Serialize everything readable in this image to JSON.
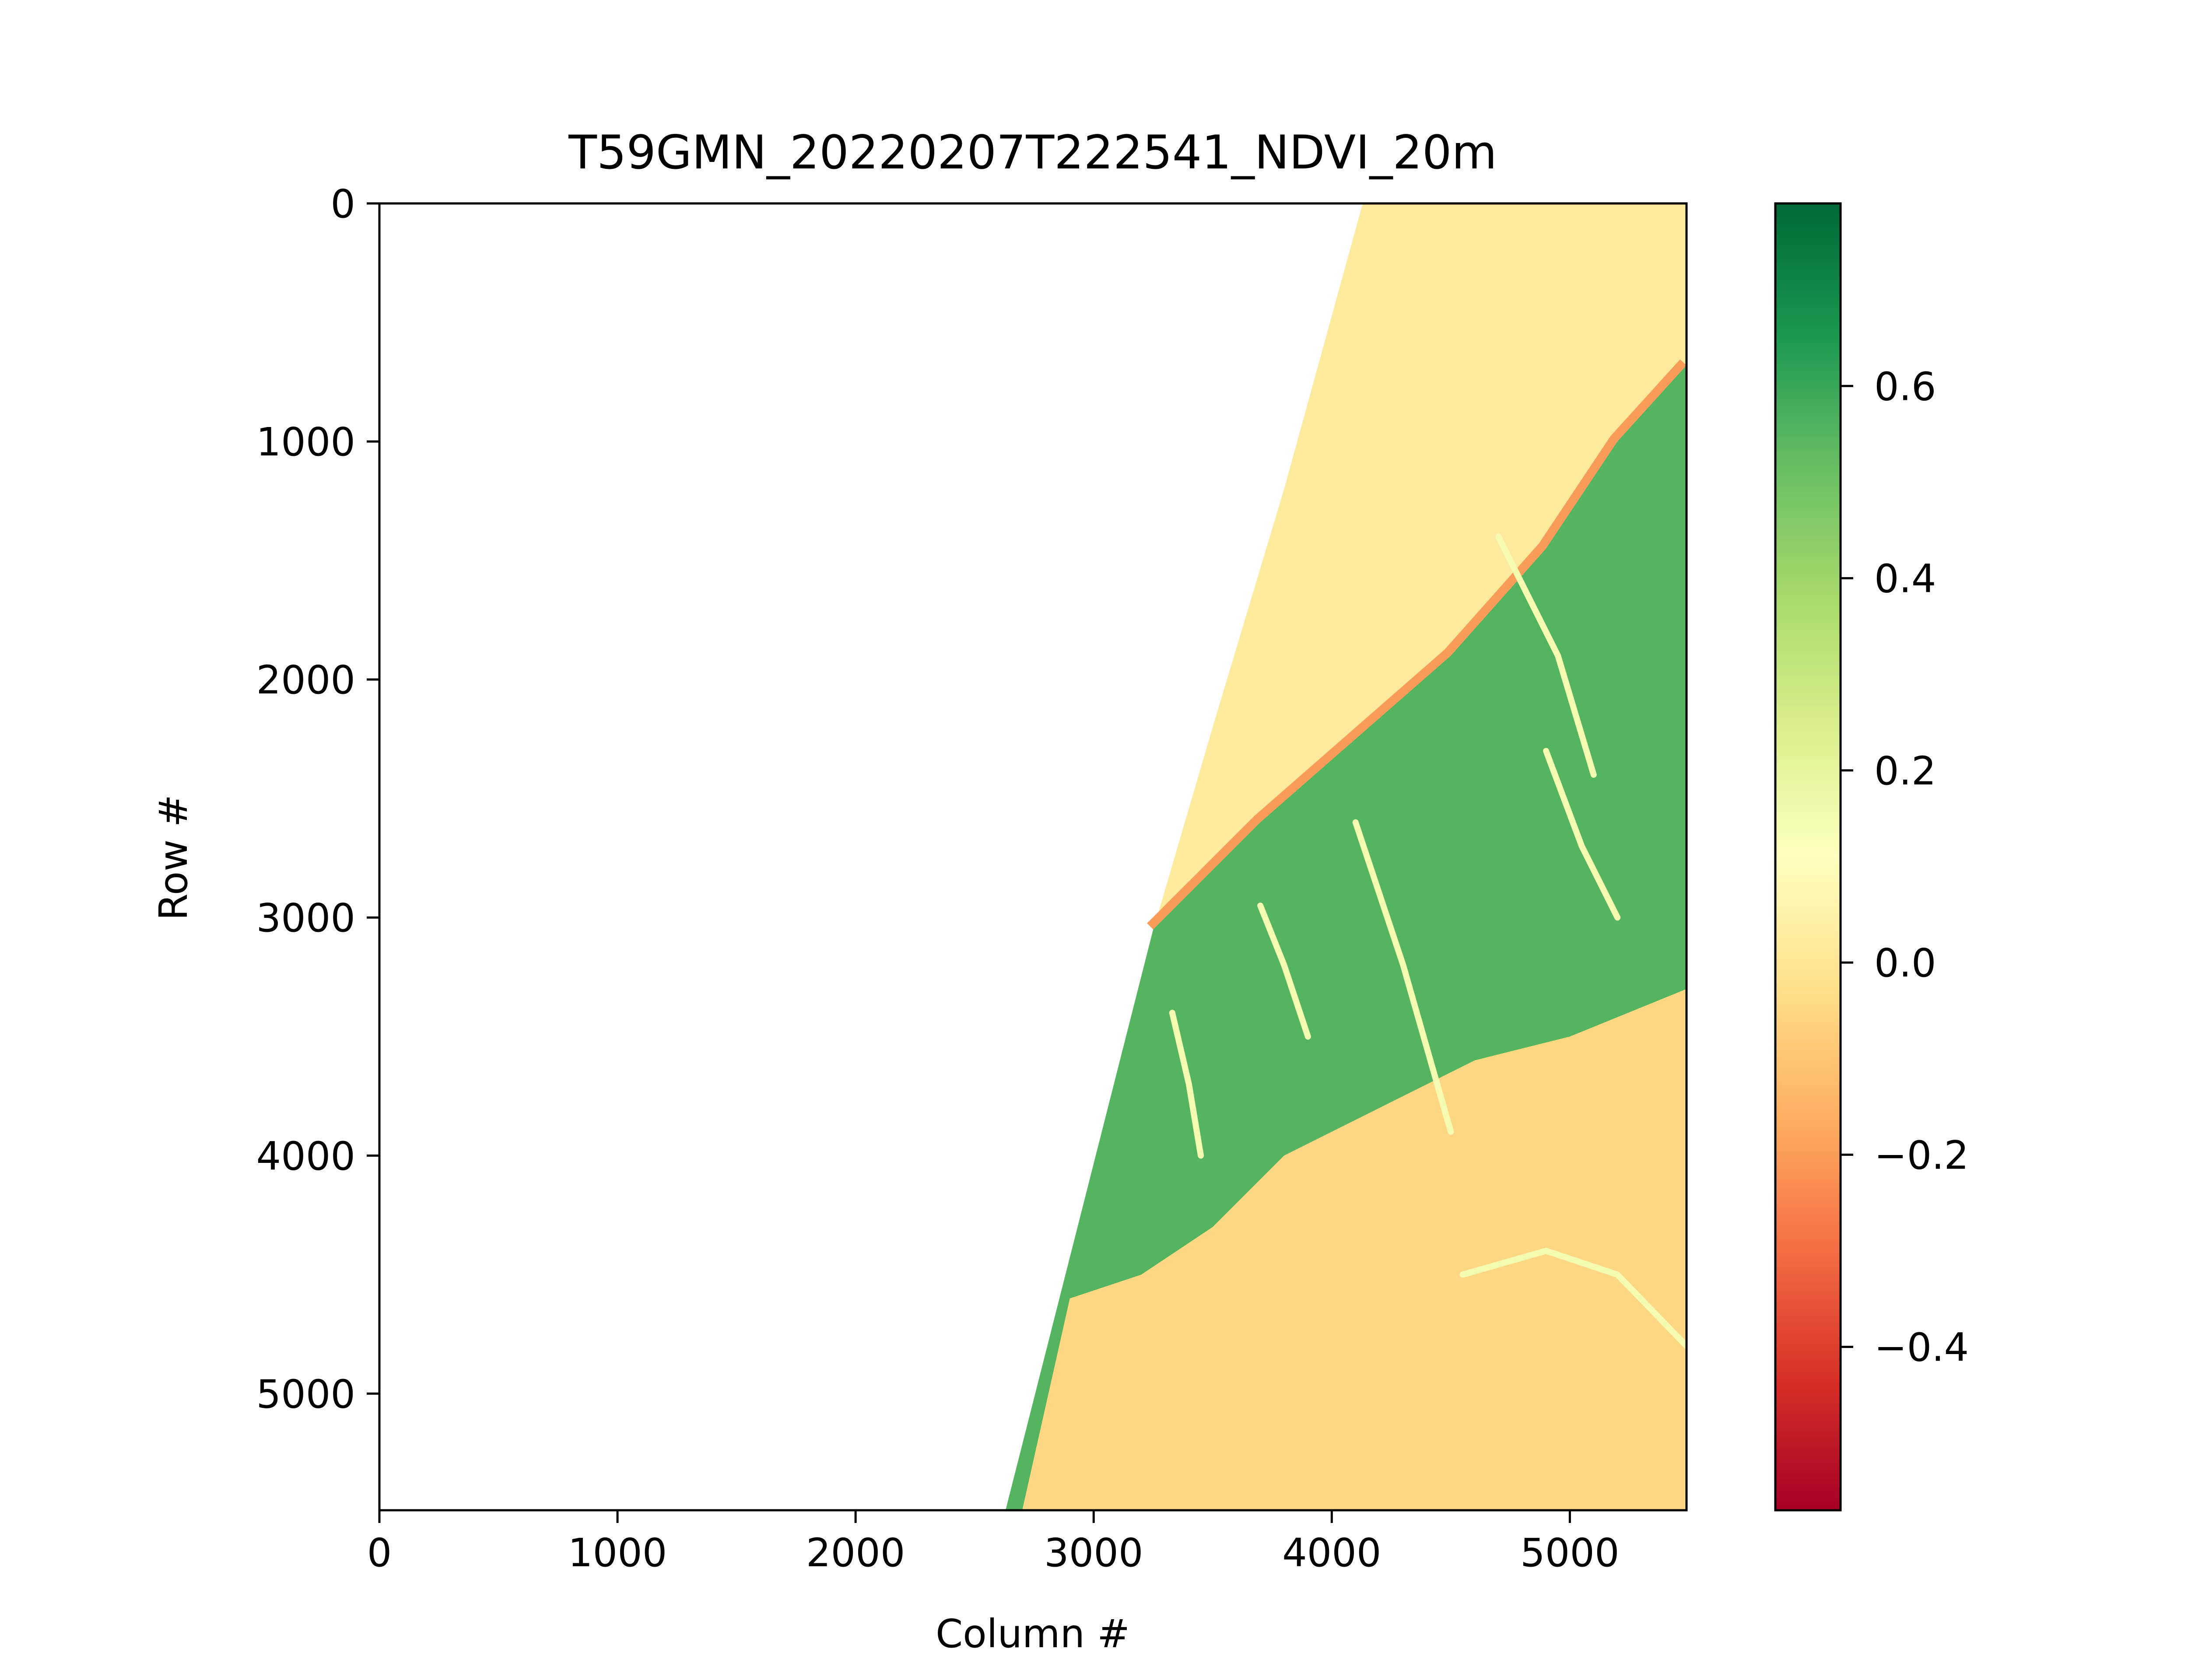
{
  "chart_data": {
    "type": "heatmap",
    "title": "T59GMN_20220207T222541_NDVI_20m",
    "xlabel": "Column #",
    "ylabel": "Row #",
    "xlim": [
      0,
      5490
    ],
    "ylim": [
      5490,
      0
    ],
    "xticks": [
      0,
      1000,
      2000,
      3000,
      4000,
      5000
    ],
    "xtick_labels": [
      "0",
      "1000",
      "2000",
      "3000",
      "4000",
      "5000"
    ],
    "yticks": [
      0,
      1000,
      2000,
      3000,
      4000,
      5000
    ],
    "ytick_labels": [
      "0",
      "1000",
      "2000",
      "3000",
      "4000",
      "5000"
    ],
    "colormap": "RdYlGn",
    "colorbar": {
      "vmin": -0.57,
      "vmax": 0.79,
      "ticks": [
        -0.4,
        -0.2,
        0.0,
        0.2,
        0.4,
        0.6
      ],
      "tick_labels": [
        "−0.4",
        "−0.2",
        "0.0",
        "0.2",
        "0.4",
        "0.6"
      ]
    },
    "regions": [
      {
        "name": "no-data",
        "value": null,
        "polygon": [
          [
            0,
            0
          ],
          [
            4130,
            0
          ],
          [
            2630,
            5490
          ],
          [
            0,
            5490
          ]
        ]
      },
      {
        "name": "sea",
        "value": 0.02,
        "polygon": [
          [
            4130,
            0
          ],
          [
            5490,
            0
          ],
          [
            5490,
            680
          ],
          [
            5200,
            1000
          ],
          [
            4900,
            1450
          ],
          [
            4500,
            1900
          ],
          [
            4100,
            2250
          ],
          [
            3700,
            2600
          ],
          [
            3450,
            2850
          ],
          [
            3250,
            3050
          ],
          [
            3260,
            3020
          ],
          [
            3500,
            2200
          ],
          [
            3800,
            1200
          ]
        ]
      },
      {
        "name": "coastline",
        "value": -0.2,
        "polyline": [
          [
            5490,
            680
          ],
          [
            5200,
            1000
          ],
          [
            4900,
            1450
          ],
          [
            4500,
            1900
          ],
          [
            4100,
            2250
          ],
          [
            3700,
            2600
          ],
          [
            3450,
            2850
          ],
          [
            3250,
            3050
          ]
        ]
      },
      {
        "name": "land",
        "value": 0.55,
        "polygon": [
          [
            5490,
            680
          ],
          [
            5490,
            5490
          ],
          [
            2630,
            5490
          ],
          [
            3250,
            3050
          ],
          [
            3450,
            2850
          ],
          [
            3700,
            2600
          ],
          [
            4100,
            2250
          ],
          [
            4500,
            1900
          ],
          [
            4900,
            1450
          ],
          [
            5200,
            1000
          ]
        ]
      },
      {
        "name": "sparse-vegetation",
        "value": -0.05,
        "polygon": [
          [
            2700,
            5490
          ],
          [
            2900,
            4600
          ],
          [
            3200,
            4500
          ],
          [
            3500,
            4300
          ],
          [
            3800,
            4000
          ],
          [
            4200,
            3800
          ],
          [
            4600,
            3600
          ],
          [
            5000,
            3500
          ],
          [
            5490,
            3300
          ],
          [
            5490,
            5490
          ]
        ]
      }
    ],
    "streams": [
      [
        [
          3330,
          3400
        ],
        [
          3400,
          3700
        ],
        [
          3450,
          4000
        ]
      ],
      [
        [
          3700,
          2950
        ],
        [
          3800,
          3200
        ],
        [
          3900,
          3500
        ]
      ],
      [
        [
          4700,
          1400
        ],
        [
          4950,
          1900
        ],
        [
          5100,
          2400
        ]
      ],
      [
        [
          4900,
          2300
        ],
        [
          5050,
          2700
        ],
        [
          5200,
          3000
        ]
      ],
      [
        [
          4100,
          2600
        ],
        [
          4300,
          3200
        ],
        [
          4500,
          3900
        ]
      ],
      [
        [
          4550,
          4500
        ],
        [
          4900,
          4400
        ],
        [
          5200,
          4500
        ],
        [
          5490,
          4800
        ]
      ]
    ]
  }
}
